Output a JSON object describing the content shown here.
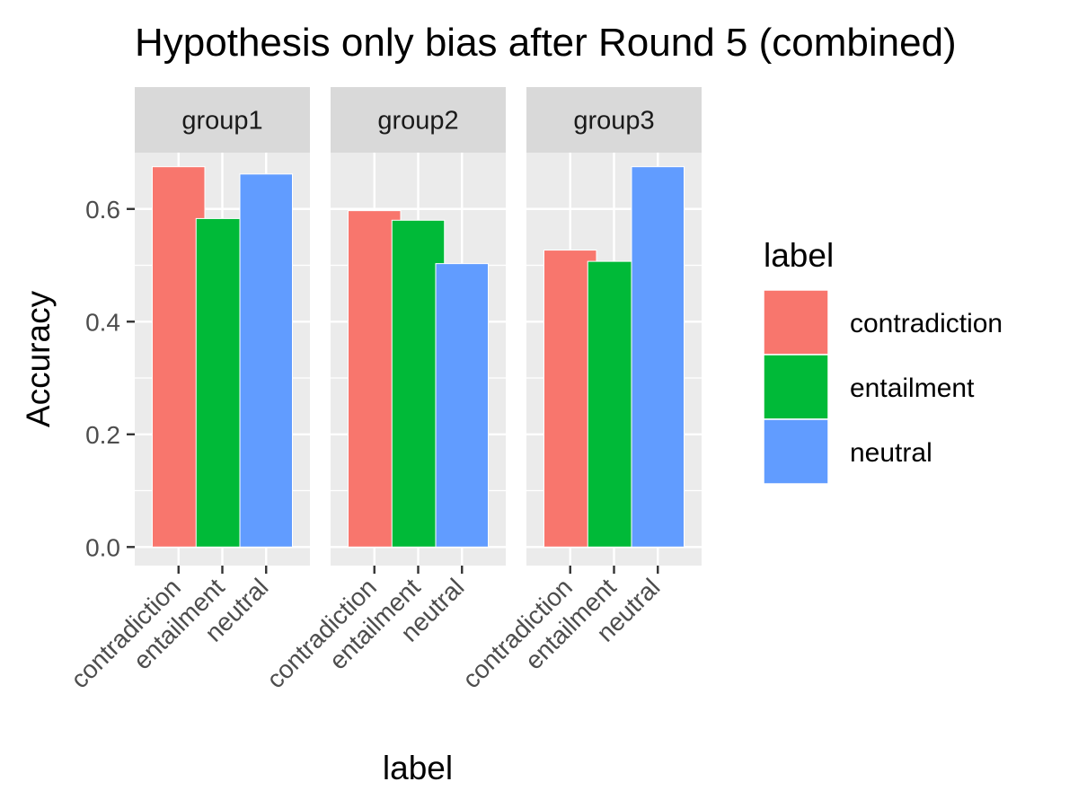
{
  "chart_data": {
    "type": "bar",
    "title": "Hypothesis only bias after Round 5 (combined)",
    "xlabel": "label",
    "ylabel": "Accuracy",
    "ylim": [
      -0.033,
      0.7
    ],
    "y_ticks": [
      0.0,
      0.2,
      0.4,
      0.6
    ],
    "y_tick_labels": [
      "0.0",
      "0.2",
      "0.4",
      "0.6"
    ],
    "grid": true,
    "legend_position": "right",
    "legend_title": "label",
    "categories": [
      "contradiction",
      "entailment",
      "neutral"
    ],
    "colors": {
      "contradiction": "#F8766D",
      "entailment": "#00BA38",
      "neutral": "#619CFF"
    },
    "panels": [
      {
        "name": "group1",
        "values": [
          0.675,
          0.583,
          0.662
        ]
      },
      {
        "name": "group2",
        "values": [
          0.597,
          0.58,
          0.503
        ]
      },
      {
        "name": "group3",
        "values": [
          0.527,
          0.507,
          0.675
        ]
      }
    ]
  }
}
